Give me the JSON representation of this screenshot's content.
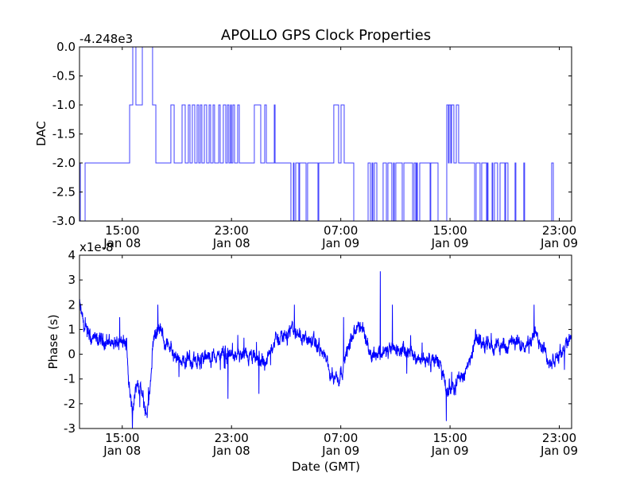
{
  "title": "APOLLO GPS Clock Properties",
  "colors": {
    "line": "#0000ff",
    "axes": "#000000",
    "background": "#ffffff"
  },
  "chart_data": [
    {
      "type": "line",
      "style": "step",
      "title": "APOLLO GPS Clock Properties",
      "ylabel": "DAC",
      "xlabel": "",
      "offset_text": "-4.248e3",
      "x_unit": "hours since Jan 08 00:00 GMT",
      "xlim": [
        11.87,
        47.9
      ],
      "ylim": [
        -3.0,
        0.0
      ],
      "yticks": [
        0.0,
        -0.5,
        -1.0,
        -1.5,
        -2.0,
        -2.5,
        -3.0
      ],
      "ytick_labels": [
        "0.0",
        "-0.5",
        "-1.0",
        "-1.5",
        "-2.0",
        "-2.5",
        "-3.0"
      ],
      "xticks": [
        15,
        23,
        31,
        39,
        47
      ],
      "xtick_labels": [
        [
          "15:00",
          "Jan 08"
        ],
        [
          "23:00",
          "Jan 08"
        ],
        [
          "07:00",
          "Jan 09"
        ],
        [
          "15:00",
          "Jan 09"
        ],
        [
          "23:00",
          "Jan 09"
        ]
      ],
      "grid": false,
      "steps": [
        [
          11.87,
          -2
        ],
        [
          11.93,
          -3
        ],
        [
          12.28,
          -2
        ],
        [
          15.54,
          -1
        ],
        [
          15.77,
          0
        ],
        [
          16.0,
          -1
        ],
        [
          16.47,
          0
        ],
        [
          17.22,
          -1
        ],
        [
          17.46,
          -2
        ],
        [
          18.56,
          -1
        ],
        [
          18.8,
          -2
        ],
        [
          19.38,
          -1
        ],
        [
          19.61,
          -2
        ],
        [
          19.84,
          -1
        ],
        [
          19.96,
          -2
        ],
        [
          20.13,
          -1
        ],
        [
          20.31,
          -2
        ],
        [
          20.48,
          -1
        ],
        [
          20.6,
          -2
        ],
        [
          20.72,
          -1
        ],
        [
          20.83,
          -2
        ],
        [
          21.01,
          -1
        ],
        [
          21.18,
          -2
        ],
        [
          21.36,
          -1
        ],
        [
          21.47,
          -2
        ],
        [
          21.65,
          -1
        ],
        [
          21.76,
          -2
        ],
        [
          22.06,
          -1
        ],
        [
          22.17,
          -2
        ],
        [
          22.4,
          -1
        ],
        [
          22.58,
          -2
        ],
        [
          22.7,
          -1
        ],
        [
          22.81,
          -2
        ],
        [
          22.93,
          -1
        ],
        [
          22.99,
          -2
        ],
        [
          23.1,
          -1
        ],
        [
          23.22,
          -2
        ],
        [
          23.45,
          -1
        ],
        [
          23.57,
          -2
        ],
        [
          24.67,
          -1
        ],
        [
          25.14,
          -2
        ],
        [
          25.43,
          -1
        ],
        [
          25.55,
          -2
        ],
        [
          26.13,
          -1
        ],
        [
          26.19,
          -2
        ],
        [
          27.35,
          -3
        ],
        [
          27.53,
          -2
        ],
        [
          27.58,
          -3
        ],
        [
          27.7,
          -2
        ],
        [
          27.93,
          -3
        ],
        [
          27.99,
          -2
        ],
        [
          28.46,
          -3
        ],
        [
          28.57,
          -2
        ],
        [
          29.33,
          -3
        ],
        [
          29.39,
          -2
        ],
        [
          30.49,
          -1
        ],
        [
          30.84,
          -2
        ],
        [
          31.02,
          -1
        ],
        [
          31.25,
          -2
        ],
        [
          31.95,
          -3
        ],
        [
          33.0,
          -2
        ],
        [
          33.17,
          -3
        ],
        [
          33.29,
          -2
        ],
        [
          33.35,
          -3
        ],
        [
          33.46,
          -2
        ],
        [
          33.64,
          -3
        ],
        [
          34.1,
          -2
        ],
        [
          34.34,
          -3
        ],
        [
          34.45,
          -2
        ],
        [
          34.74,
          -3
        ],
        [
          34.86,
          -2
        ],
        [
          34.92,
          -3
        ],
        [
          35.03,
          -2
        ],
        [
          35.5,
          -3
        ],
        [
          35.62,
          -2
        ],
        [
          36.26,
          -3
        ],
        [
          36.37,
          -2
        ],
        [
          36.49,
          -3
        ],
        [
          36.55,
          -2
        ],
        [
          36.61,
          -3
        ],
        [
          36.78,
          -2
        ],
        [
          37.54,
          -3
        ],
        [
          37.59,
          -2
        ],
        [
          38.12,
          -3
        ],
        [
          38.76,
          -1
        ],
        [
          38.88,
          -2
        ],
        [
          38.93,
          -1
        ],
        [
          39.05,
          -2
        ],
        [
          39.11,
          -1
        ],
        [
          39.28,
          -2
        ],
        [
          39.46,
          -1
        ],
        [
          39.63,
          -2
        ],
        [
          40.8,
          -3
        ],
        [
          40.91,
          -2
        ],
        [
          41.2,
          -3
        ],
        [
          41.32,
          -2
        ],
        [
          41.67,
          -3
        ],
        [
          41.73,
          -2
        ],
        [
          41.78,
          -3
        ],
        [
          42.08,
          -2
        ],
        [
          42.13,
          -3
        ],
        [
          42.25,
          -2
        ],
        [
          42.48,
          -3
        ],
        [
          42.66,
          -2
        ],
        [
          43.01,
          -3
        ],
        [
          43.07,
          -2
        ],
        [
          43.24,
          -3
        ],
        [
          43.76,
          -2
        ],
        [
          43.82,
          -3
        ],
        [
          44.4,
          -2
        ],
        [
          44.46,
          -3
        ],
        [
          46.44,
          -2
        ],
        [
          46.56,
          -3
        ],
        [
          47.9,
          -3
        ]
      ]
    },
    {
      "type": "line",
      "title": "",
      "ylabel": "Phase (s)",
      "xlabel": "Date (GMT)",
      "offset_text": "x1e-8",
      "x_unit": "hours since Jan 08 00:00 GMT",
      "y_unit": "1e-8 s",
      "xlim": [
        11.87,
        47.9
      ],
      "ylim": [
        -3,
        4
      ],
      "yticks": [
        4,
        3,
        2,
        1,
        0,
        -1,
        -2,
        -3
      ],
      "ytick_labels": [
        "4",
        "3",
        "2",
        "1",
        "0",
        "-1",
        "-2",
        "-3"
      ],
      "xticks": [
        15,
        23,
        31,
        39,
        47
      ],
      "xtick_labels": [
        [
          "15:00",
          "Jan 08"
        ],
        [
          "23:00",
          "Jan 08"
        ],
        [
          "07:00",
          "Jan 09"
        ],
        [
          "15:00",
          "Jan 09"
        ],
        [
          "23:00",
          "Jan 09"
        ]
      ],
      "grid": false,
      "trend": [
        [
          11.87,
          2.0
        ],
        [
          12.24,
          1.0
        ],
        [
          12.72,
          0.6
        ],
        [
          15.34,
          0.4
        ],
        [
          15.46,
          -1.0
        ],
        [
          15.7,
          -2.2
        ],
        [
          16.06,
          -1.3
        ],
        [
          16.3,
          -1.3
        ],
        [
          16.78,
          -2.5
        ],
        [
          17.01,
          -1.5
        ],
        [
          17.25,
          0.5
        ],
        [
          17.61,
          1.1
        ],
        [
          18.45,
          0.3
        ],
        [
          18.92,
          -0.3
        ],
        [
          20.83,
          -0.2
        ],
        [
          22.74,
          0.0
        ],
        [
          24.65,
          -0.2
        ],
        [
          25.6,
          -0.3
        ],
        [
          26.08,
          0.5
        ],
        [
          27.51,
          1.0
        ],
        [
          27.99,
          0.8
        ],
        [
          29.42,
          0.3
        ],
        [
          30.37,
          -0.8
        ],
        [
          30.85,
          -1.0
        ],
        [
          31.57,
          0.3
        ],
        [
          32.28,
          1.2
        ],
        [
          32.76,
          0.8
        ],
        [
          33.23,
          0.0
        ],
        [
          35.14,
          0.2
        ],
        [
          37.05,
          -0.2
        ],
        [
          38.24,
          -0.3
        ],
        [
          38.72,
          -1.5
        ],
        [
          39.67,
          -1.0
        ],
        [
          40.39,
          -0.5
        ],
        [
          40.87,
          0.6
        ],
        [
          42.3,
          0.3
        ],
        [
          44.68,
          0.5
        ],
        [
          45.16,
          0.8
        ],
        [
          45.88,
          0.3
        ],
        [
          46.35,
          -0.5
        ],
        [
          47.07,
          0.0
        ],
        [
          47.9,
          0.9
        ]
      ],
      "noise_amplitude": 0.35,
      "spikes": [
        [
          17.61,
          2.0
        ],
        [
          22.74,
          -1.8
        ],
        [
          25.0,
          -1.6
        ],
        [
          33.9,
          3.35
        ],
        [
          34.78,
          2.0
        ],
        [
          38.72,
          -2.7
        ],
        [
          45.16,
          2.0
        ],
        [
          27.6,
          2.0
        ],
        [
          31.2,
          1.5
        ]
      ]
    }
  ]
}
